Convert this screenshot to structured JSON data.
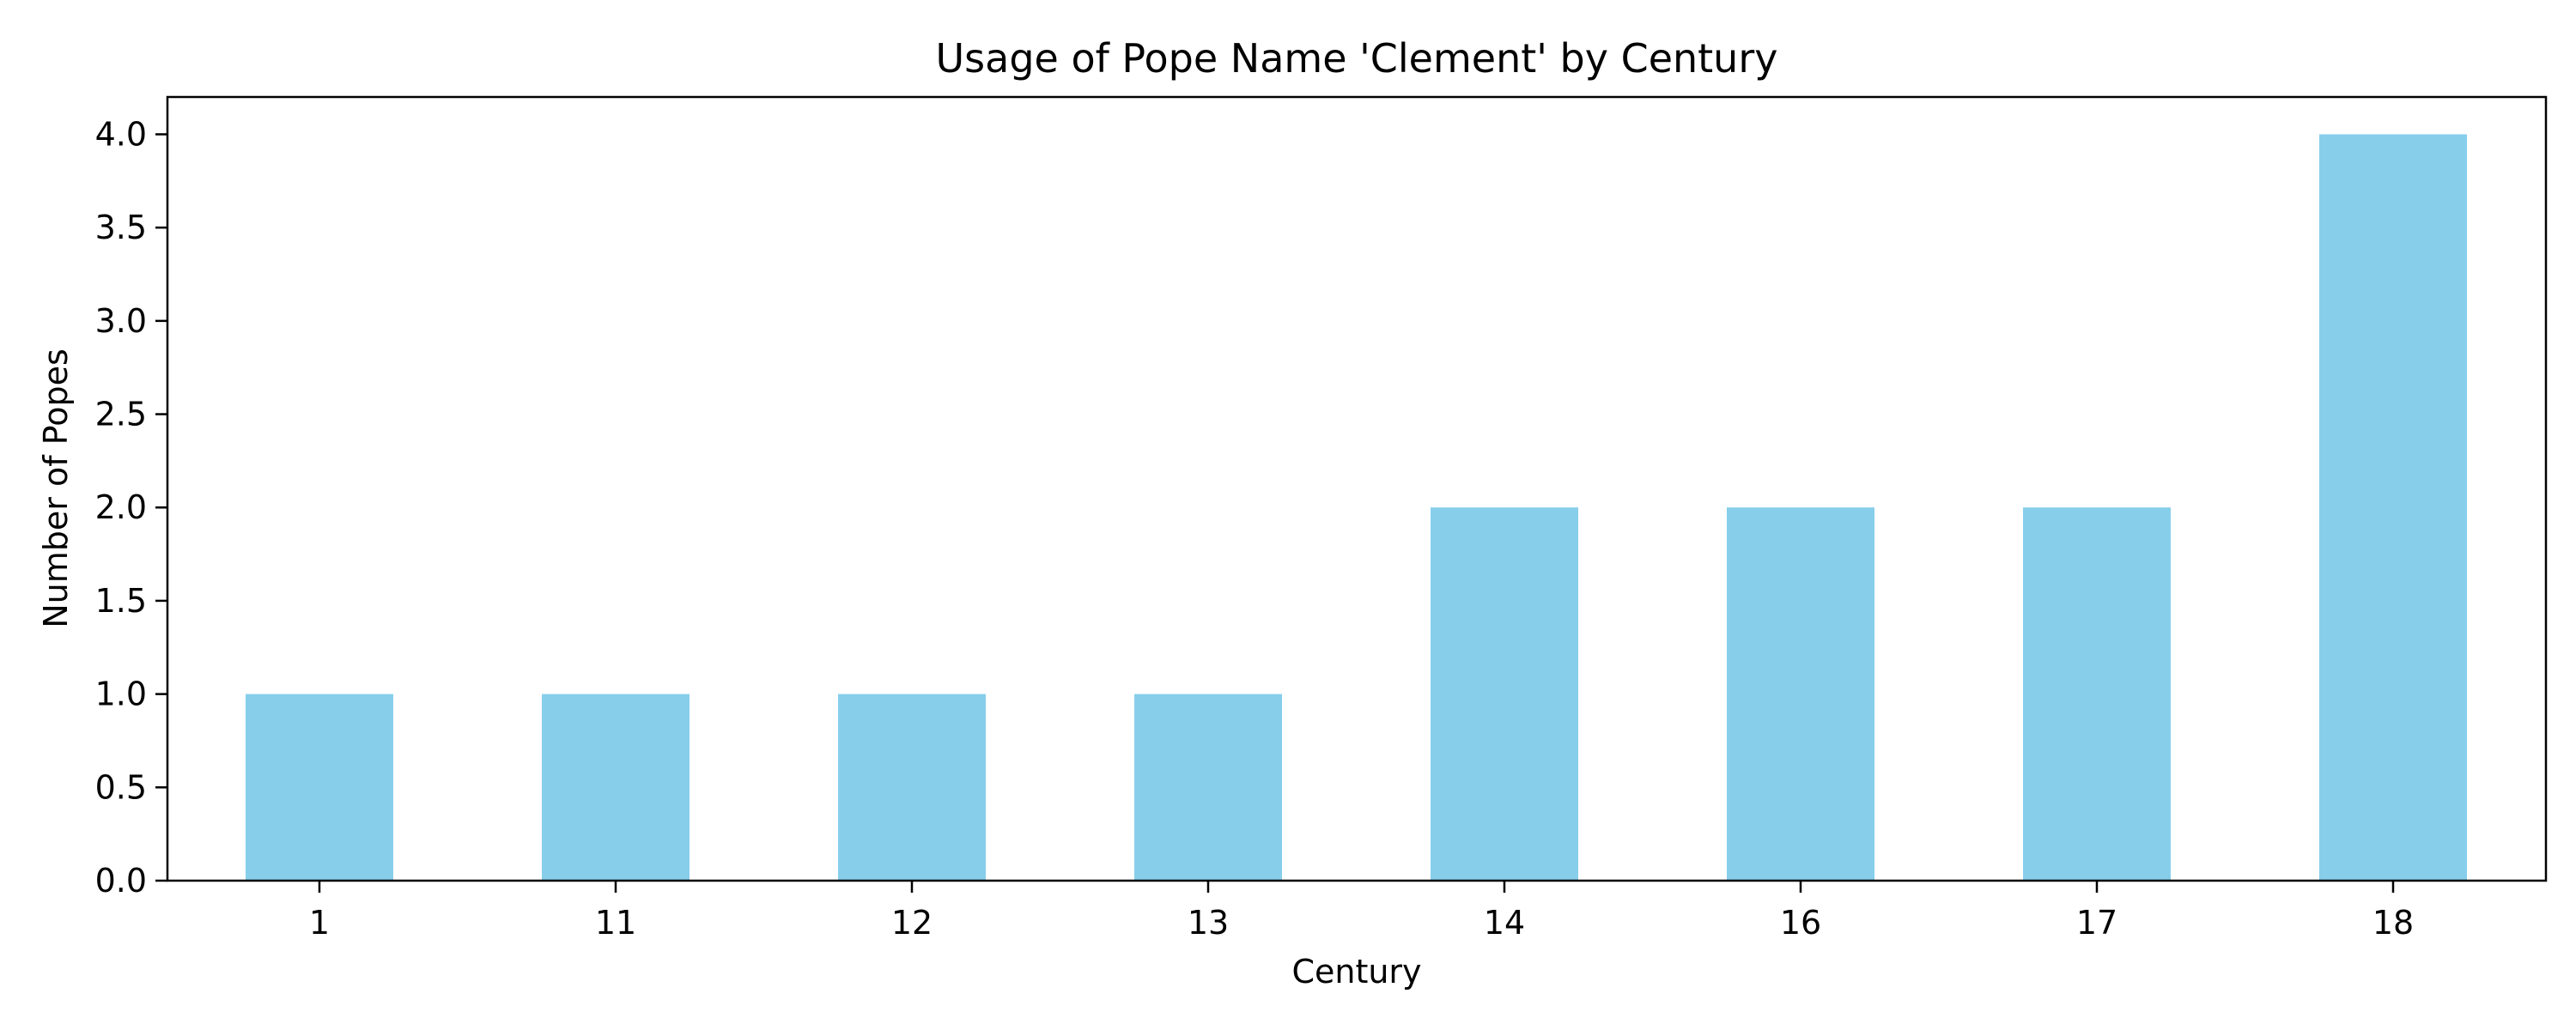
{
  "chart_data": {
    "type": "bar",
    "title": "Usage of Pope Name 'Clement' by Century",
    "xlabel": "Century",
    "ylabel": "Number of Popes",
    "categories": [
      "1",
      "11",
      "12",
      "13",
      "14",
      "16",
      "17",
      "18"
    ],
    "values": [
      1,
      1,
      1,
      1,
      2,
      2,
      2,
      4
    ],
    "ylim": [
      0,
      4.2
    ],
    "yticks": [
      "0.0",
      "0.5",
      "1.0",
      "1.5",
      "2.0",
      "2.5",
      "3.0",
      "3.5",
      "4.0"
    ],
    "grid": false,
    "legend": "none",
    "bar_color": "#87CEEB",
    "axis_color": "#000000"
  }
}
